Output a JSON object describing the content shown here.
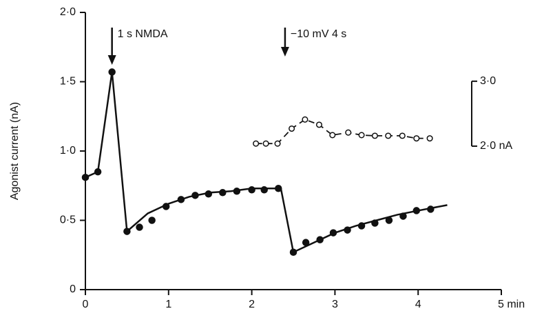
{
  "chart_data": {
    "type": "scatter",
    "ylabel": "Agonist current (nA)",
    "xlim": [
      0,
      5
    ],
    "xticks": [
      0,
      1,
      2,
      3,
      4,
      {
        "value": 5,
        "label": "5 min"
      }
    ],
    "ylim": [
      0,
      2
    ],
    "yticks": [
      {
        "value": 0,
        "label": "0"
      },
      {
        "value": 0.5,
        "label": "0·5"
      },
      {
        "value": 1,
        "label": "1·0"
      },
      {
        "value": 1.5,
        "label": "1·5"
      },
      {
        "value": 2,
        "label": "2·0"
      }
    ],
    "y2lim": [
      -0.21,
      4.06
    ],
    "y2ticks": [
      {
        "value": 2,
        "label": "2·0 nA"
      },
      {
        "value": 3,
        "label": "3·0"
      }
    ],
    "annotations": [
      {
        "text": "1 s NMDA",
        "x": 0.32
      },
      {
        "text": "−10 mV 4 s",
        "x": 2.4
      }
    ],
    "series": [
      {
        "style": "filled",
        "color": "#111",
        "x": [
          0,
          0.15,
          0.32,
          0.5,
          0.65,
          0.8,
          0.97,
          1.15,
          1.32,
          1.48,
          1.65,
          1.82,
          2.0,
          2.15,
          2.32,
          2.5,
          2.65,
          2.82,
          2.98,
          3.15,
          3.32,
          3.48,
          3.65,
          3.82,
          3.98,
          4.15
        ],
        "values": [
          0.81,
          0.85,
          1.57,
          0.42,
          0.45,
          0.5,
          0.6,
          0.65,
          0.68,
          0.69,
          0.7,
          0.71,
          0.72,
          0.72,
          0.73,
          0.27,
          0.34,
          0.36,
          0.41,
          0.43,
          0.46,
          0.48,
          0.5,
          0.53,
          0.57,
          0.58
        ]
      },
      {
        "style": "line",
        "color": "#111",
        "x": [
          0,
          0.15,
          0.32,
          0.5,
          0.75,
          1.0,
          1.25,
          1.5,
          1.75,
          2.0,
          2.25,
          2.35,
          2.5,
          2.75,
          3.0,
          3.25,
          3.5,
          3.75,
          4.0,
          4.35
        ],
        "values": [
          0.81,
          0.85,
          1.57,
          0.42,
          0.55,
          0.62,
          0.67,
          0.7,
          0.71,
          0.73,
          0.73,
          0.73,
          0.27,
          0.34,
          0.41,
          0.46,
          0.5,
          0.54,
          0.57,
          0.61
        ]
      },
      {
        "style": "open",
        "color": "#111",
        "axis": "y2",
        "x": [
          2.05,
          2.17,
          2.31,
          2.48,
          2.64,
          2.81,
          2.97,
          3.16,
          3.32,
          3.48,
          3.64,
          3.81,
          3.98,
          4.14
        ],
        "values": [
          2.04,
          2.04,
          2.04,
          2.27,
          2.41,
          2.33,
          2.17,
          2.21,
          2.17,
          2.16,
          2.16,
          2.16,
          2.12,
          2.12
        ]
      }
    ]
  }
}
